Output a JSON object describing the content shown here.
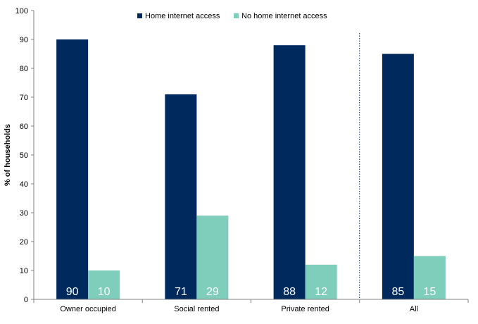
{
  "chart_data": {
    "type": "bar",
    "title": "",
    "xlabel": "",
    "ylabel": "% of households",
    "ylim": [
      0,
      100
    ],
    "yticks": [
      0,
      10,
      20,
      30,
      40,
      50,
      60,
      70,
      80,
      90,
      100
    ],
    "categories": [
      "Owner occupied",
      "Social rented",
      "Private rented",
      "All"
    ],
    "series": [
      {
        "name": "Home internet access",
        "values": [
          90,
          71,
          88,
          85
        ],
        "labels": [
          "90",
          "71",
          "88",
          "85"
        ],
        "color": "#002a5e"
      },
      {
        "name": "No home internet access",
        "values": [
          10,
          29,
          12,
          15
        ],
        "labels": [
          "10",
          "29",
          "12",
          "15"
        ],
        "color": "#7fcdbb"
      }
    ],
    "legend": "top",
    "grid": false,
    "separator_before_category": "All",
    "data_label_color": "#ffffff",
    "axis_text_color": "#000000"
  }
}
